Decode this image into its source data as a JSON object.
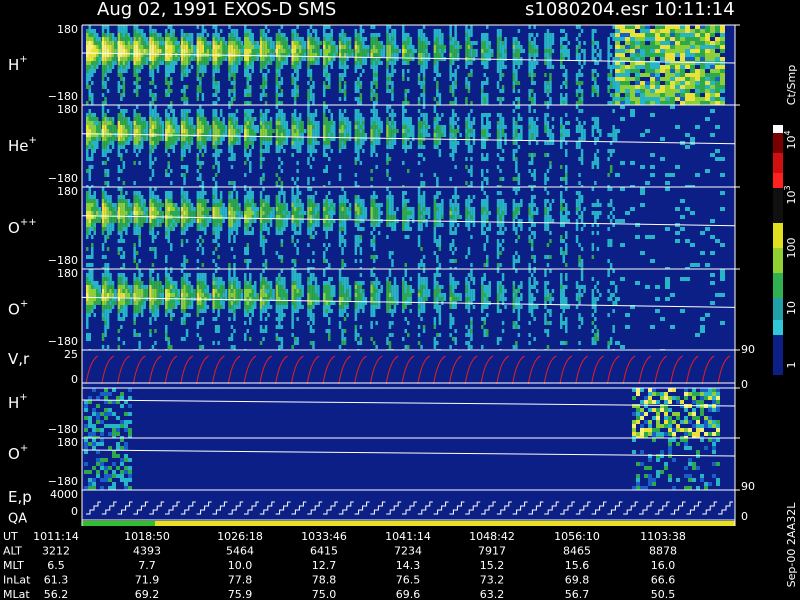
{
  "header": {
    "title": "Aug 02, 1991   EXOS-D SMS",
    "file": "s1080204.esr  10:11:14"
  },
  "panels": [
    {
      "label": "H",
      "sup": "+",
      "top": "180",
      "bottom": "−180"
    },
    {
      "label": "He",
      "sup": "+",
      "top": "180",
      "bottom": "−180"
    },
    {
      "label": "O",
      "sup": "++",
      "top": "180",
      "bottom": "−180"
    },
    {
      "label": "O",
      "sup": "+",
      "top": "180",
      "bottom": "−180"
    },
    {
      "label": "V,r",
      "top": "25",
      "bottom": "0",
      "right_top": "90",
      "right_bottom": "0"
    },
    {
      "label": "H",
      "sup": "+",
      "bottom": "−180"
    },
    {
      "label": "O",
      "sup": "+",
      "top": "180",
      "bottom": "−180",
      "right_bottom": "90"
    },
    {
      "label": "E,p",
      "label2": "QA",
      "top": "4000",
      "bottom": "0",
      "right_bottom": "0"
    }
  ],
  "colorbar": {
    "unit": "Ct/Smp",
    "labels": [
      {
        "base": "10",
        "exp": "4"
      },
      {
        "base": "10",
        "exp": "3"
      },
      "100",
      "10",
      "1"
    ]
  },
  "footer": "Sep-00  2AA32L",
  "table": {
    "rows": [
      [
        "UT",
        "1011:14",
        "1018:50",
        "1026:18",
        "1033:46",
        "1041:14",
        "1048:42",
        "1056:10",
        "1103:38"
      ],
      [
        "ALT",
        "3212",
        "4393",
        "5464",
        "6415",
        "7234",
        "7917",
        "8465",
        "8878"
      ],
      [
        "MLT",
        "6.5",
        "7.7",
        "10.0",
        "12.7",
        "14.3",
        "15.2",
        "15.6",
        "16.0"
      ],
      [
        "InLat",
        "61.3",
        "71.9",
        "77.8",
        "78.8",
        "76.5",
        "73.2",
        "69.8",
        "66.6"
      ],
      [
        "MLat",
        "56.2",
        "69.2",
        "75.9",
        "75.0",
        "69.6",
        "63.2",
        "56.7",
        "50.5"
      ]
    ]
  }
}
